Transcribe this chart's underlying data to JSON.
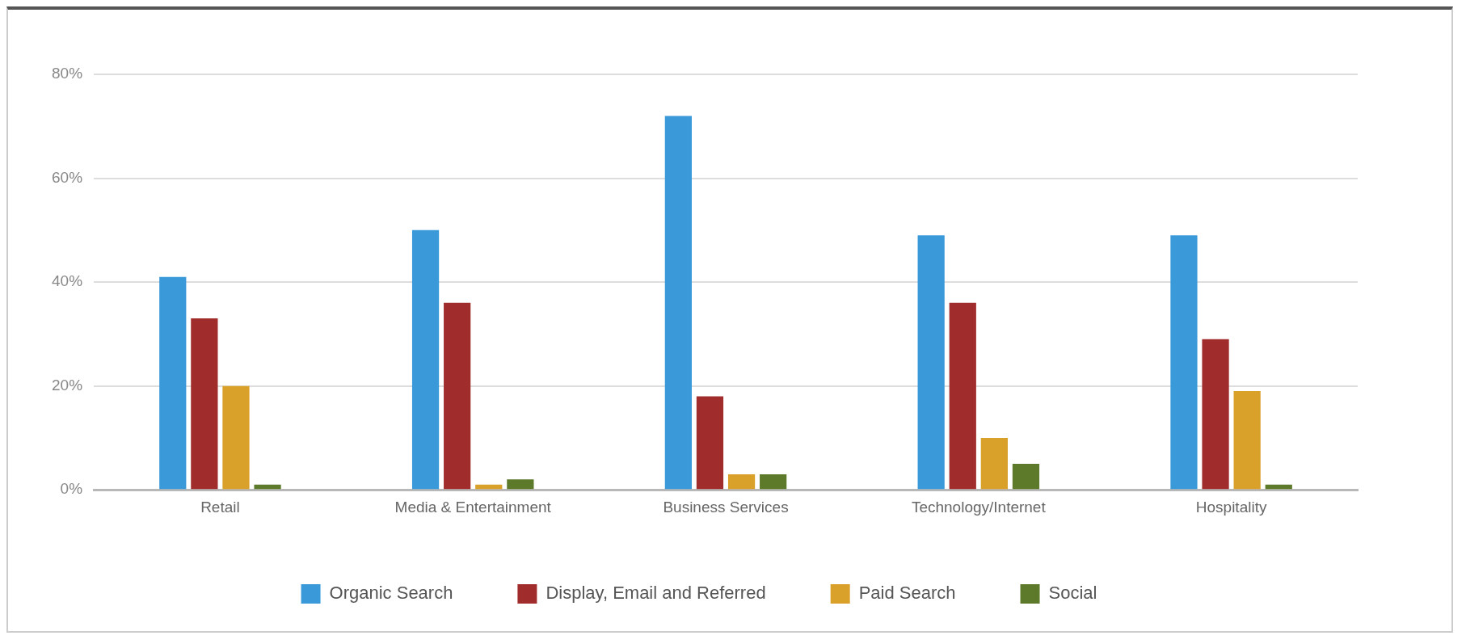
{
  "chart_data": {
    "type": "bar",
    "categories": [
      "Retail",
      "Media & Entertainment",
      "Business Services",
      "Technology/Internet",
      "Hospitality"
    ],
    "series": [
      {
        "name": "Organic Search",
        "color": "#3a9ad9",
        "values": [
          41,
          50,
          72,
          49,
          49
        ]
      },
      {
        "name": "Display, Email and Referred",
        "color": "#a02c2c",
        "values": [
          33,
          36,
          18,
          36,
          29
        ]
      },
      {
        "name": "Paid Search",
        "color": "#d9a12a",
        "values": [
          20,
          1,
          3,
          10,
          19
        ]
      },
      {
        "name": "Social",
        "color": "#5d7a2a",
        "values": [
          1,
          2,
          3,
          5,
          1
        ]
      }
    ],
    "ylim": [
      0,
      80
    ],
    "yticks": [
      {
        "value": 0,
        "label": "0%"
      },
      {
        "value": 20,
        "label": "20%"
      },
      {
        "value": 40,
        "label": "40%"
      },
      {
        "value": 60,
        "label": "60%"
      },
      {
        "value": 80,
        "label": "80%"
      }
    ],
    "grid": "y",
    "legend": "bottom"
  }
}
